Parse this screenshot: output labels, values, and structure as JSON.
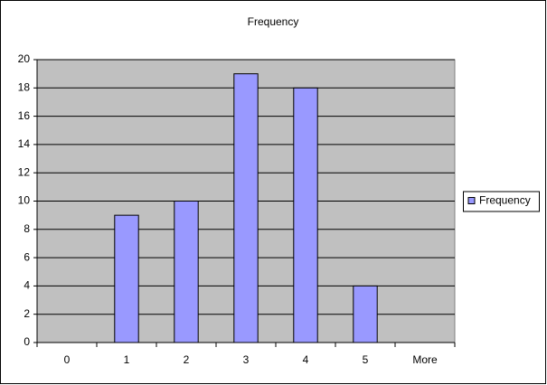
{
  "chart_data": {
    "type": "bar",
    "title": "Frequency",
    "categories": [
      "0",
      "1",
      "2",
      "3",
      "4",
      "5",
      "More"
    ],
    "series": [
      {
        "name": "Frequency",
        "color": "#9999ff",
        "values": [
          0,
          9,
          10,
          19,
          18,
          4,
          0
        ]
      }
    ],
    "ylim": [
      0,
      20
    ],
    "yticks": [
      0,
      2,
      4,
      6,
      8,
      10,
      12,
      14,
      16,
      18,
      20
    ],
    "grid": true,
    "legend": "right"
  }
}
